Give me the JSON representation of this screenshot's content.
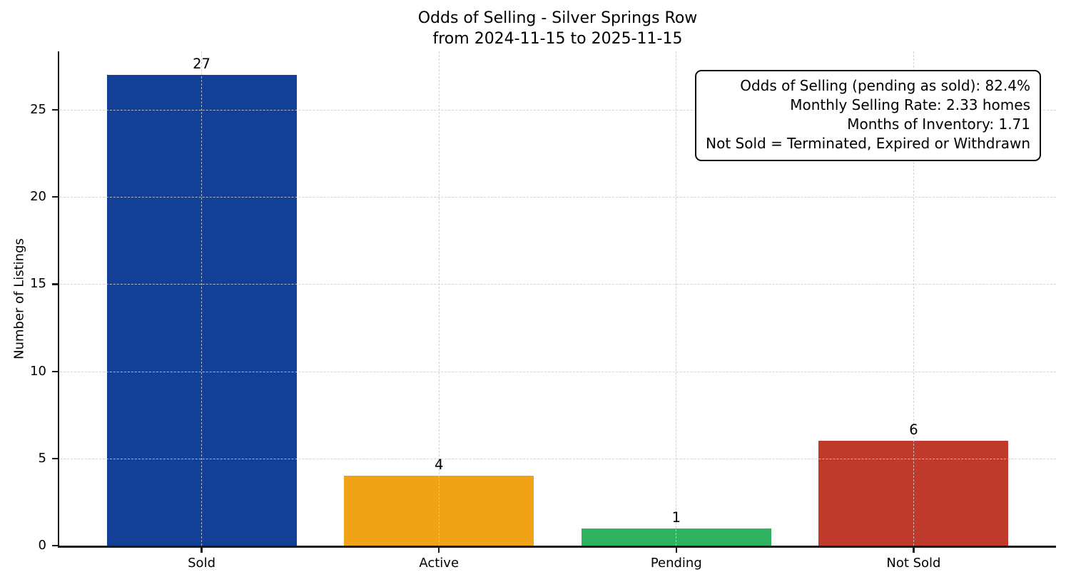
{
  "chart_data": {
    "type": "bar",
    "title": "Odds of Selling - Silver Springs Row",
    "subtitle": "from 2024-11-15 to 2025-11-15",
    "categories": [
      "Sold",
      "Active",
      "Pending",
      "Not Sold"
    ],
    "values": [
      27,
      4,
      1,
      6
    ],
    "bar_colors": [
      "#143f96",
      "#f0a317",
      "#2eb25f",
      "#c03a2b"
    ],
    "xlabel": "",
    "ylabel": "Number of Listings",
    "ylim": [
      0,
      28.35
    ],
    "yticks": [
      0,
      5,
      10,
      15,
      20,
      25
    ],
    "grid": "dashed light-gray, horizontal at y-ticks and vertical at category centers, drawn over bars",
    "legend": "none",
    "annotation_box": {
      "position": "top-right",
      "lines": [
        "Odds of Selling (pending as sold): 82.4%",
        "Monthly Selling Rate: 2.33 homes",
        "Months of Inventory: 1.71",
        "Not Sold = Terminated, Expired or Withdrawn"
      ]
    },
    "colors": {
      "background": "#ffffff",
      "text": "#000000",
      "spine": "#1a1a1a",
      "gridline": "#cccccc"
    }
  }
}
